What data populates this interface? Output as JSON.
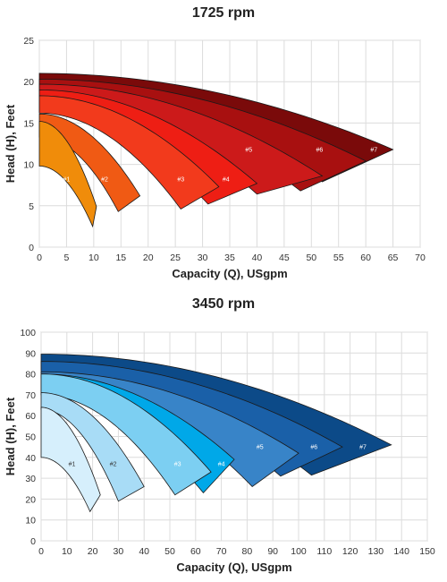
{
  "chart_data": [
    {
      "type": "area",
      "title": "1725 rpm",
      "xlabel": "Capacity (Q), USgpm",
      "ylabel": "Head (H), Feet",
      "xlim": [
        0,
        70
      ],
      "ylim": [
        0,
        25
      ],
      "xticks": [
        "0",
        "5",
        "10",
        "15",
        "20",
        "25",
        "30",
        "35",
        "40",
        "45",
        "50",
        "55",
        "60",
        "65",
        "70"
      ],
      "yticks": [
        "0",
        "5",
        "10",
        "15",
        "20",
        "25"
      ],
      "grid": true,
      "regions": [
        {
          "label": "#7",
          "color": "#7a0a0a",
          "h0": 21.0,
          "h_lo": 19.0,
          "q_end": 65,
          "h_tip": 11.8,
          "q_bot": 52,
          "h_bot": 7.9,
          "lx": 61.5,
          "ly": 11.8
        },
        {
          "label": "#6",
          "color": "#a81010",
          "h0": 20.3,
          "h_lo": 18.8,
          "q_end": 60,
          "h_tip": 10.4,
          "q_bot": 48,
          "h_bot": 6.8,
          "lx": 51.5,
          "ly": 11.8
        },
        {
          "label": "#5",
          "color": "#cc1a1a",
          "h0": 19.7,
          "h_lo": 18.2,
          "q_end": 52,
          "h_tip": 8.6,
          "q_bot": 40,
          "h_bot": 6.4,
          "lx": 38.5,
          "ly": 11.8
        },
        {
          "label": "#4",
          "color": "#ee1e14",
          "h0": 19.0,
          "h_lo": 16.3,
          "q_end": 40,
          "h_tip": 7.7,
          "q_bot": 31,
          "h_bot": 5.2,
          "lx": 34.3,
          "ly": 8.2
        },
        {
          "label": "#3",
          "color": "#f23a1c",
          "h0": 18.3,
          "h_lo": 16.2,
          "q_end": 33,
          "h_tip": 7.3,
          "q_bot": 26,
          "h_bot": 4.6,
          "lx": 26,
          "ly": 8.2
        },
        {
          "label": "#2",
          "color": "#f05a14",
          "h0": 16.1,
          "h_lo": 13.3,
          "q_end": 18.5,
          "h_tip": 6.2,
          "q_bot": 14.5,
          "h_bot": 4.3,
          "lx": 12,
          "ly": 8.2
        },
        {
          "label": "#1",
          "color": "#f08c0a",
          "h0": 15.2,
          "h_lo": 9.8,
          "q_end": 10.5,
          "h_tip": 4.9,
          "q_bot": 9.8,
          "h_bot": 2.5,
          "lx": 5,
          "ly": 8.2
        }
      ]
    },
    {
      "type": "area",
      "title": "3450 rpm",
      "xlabel": "Capacity (Q), USgpm",
      "ylabel": "Head (H), Feet",
      "xlim": [
        0,
        150
      ],
      "ylim": [
        0,
        100
      ],
      "xticks": [
        "0",
        "10",
        "20",
        "30",
        "40",
        "50",
        "60",
        "70",
        "80",
        "90",
        "100",
        "110",
        "120",
        "130",
        "140",
        "150"
      ],
      "yticks": [
        "0",
        "10",
        "20",
        "30",
        "40",
        "50",
        "60",
        "70",
        "80",
        "90",
        "100"
      ],
      "grid": true,
      "regions": [
        {
          "label": "#7",
          "color": "#0c4a88",
          "h0": 89.5,
          "h_lo": 82.0,
          "q_end": 136,
          "h_tip": 46.0,
          "q_bot": 105,
          "h_bot": 31.5,
          "lx": 125,
          "ly": 45
        },
        {
          "label": "#6",
          "color": "#1a60a8",
          "h0": 86.0,
          "h_lo": 80.5,
          "q_end": 117,
          "h_tip": 45.0,
          "q_bot": 93,
          "h_bot": 31.0,
          "lx": 106,
          "ly": 45
        },
        {
          "label": "#5",
          "color": "#3884c8",
          "h0": 81.0,
          "h_lo": 78.0,
          "q_end": 100,
          "h_tip": 42.0,
          "q_bot": 82,
          "h_bot": 26.0,
          "lx": 85,
          "ly": 45
        },
        {
          "label": "#4",
          "color": "#00a8e8",
          "h0": 80.0,
          "h_lo": 70.0,
          "q_end": 75,
          "h_tip": 39.0,
          "q_bot": 63,
          "h_bot": 23.0,
          "lx": 70,
          "ly": 37
        },
        {
          "label": "#3",
          "color": "#7ccff2",
          "h0": 80.0,
          "h_lo": 70.0,
          "q_end": 66,
          "h_tip": 33.0,
          "q_bot": 52,
          "h_bot": 22.0,
          "lx": 53,
          "ly": 37
        },
        {
          "label": "#2",
          "color": "#a8dcf6",
          "h0": 71.0,
          "h_lo": 63.0,
          "q_end": 40,
          "h_tip": 26.0,
          "q_bot": 30,
          "h_bot": 19.0,
          "lx": 28,
          "ly": 37,
          "dark": true
        },
        {
          "label": "#1",
          "color": "#d6effc",
          "h0": 64.0,
          "h_lo": 40.0,
          "q_end": 23,
          "h_tip": 22.0,
          "q_bot": 19,
          "h_bot": 14.0,
          "lx": 12,
          "ly": 37,
          "dark": true
        }
      ]
    }
  ]
}
